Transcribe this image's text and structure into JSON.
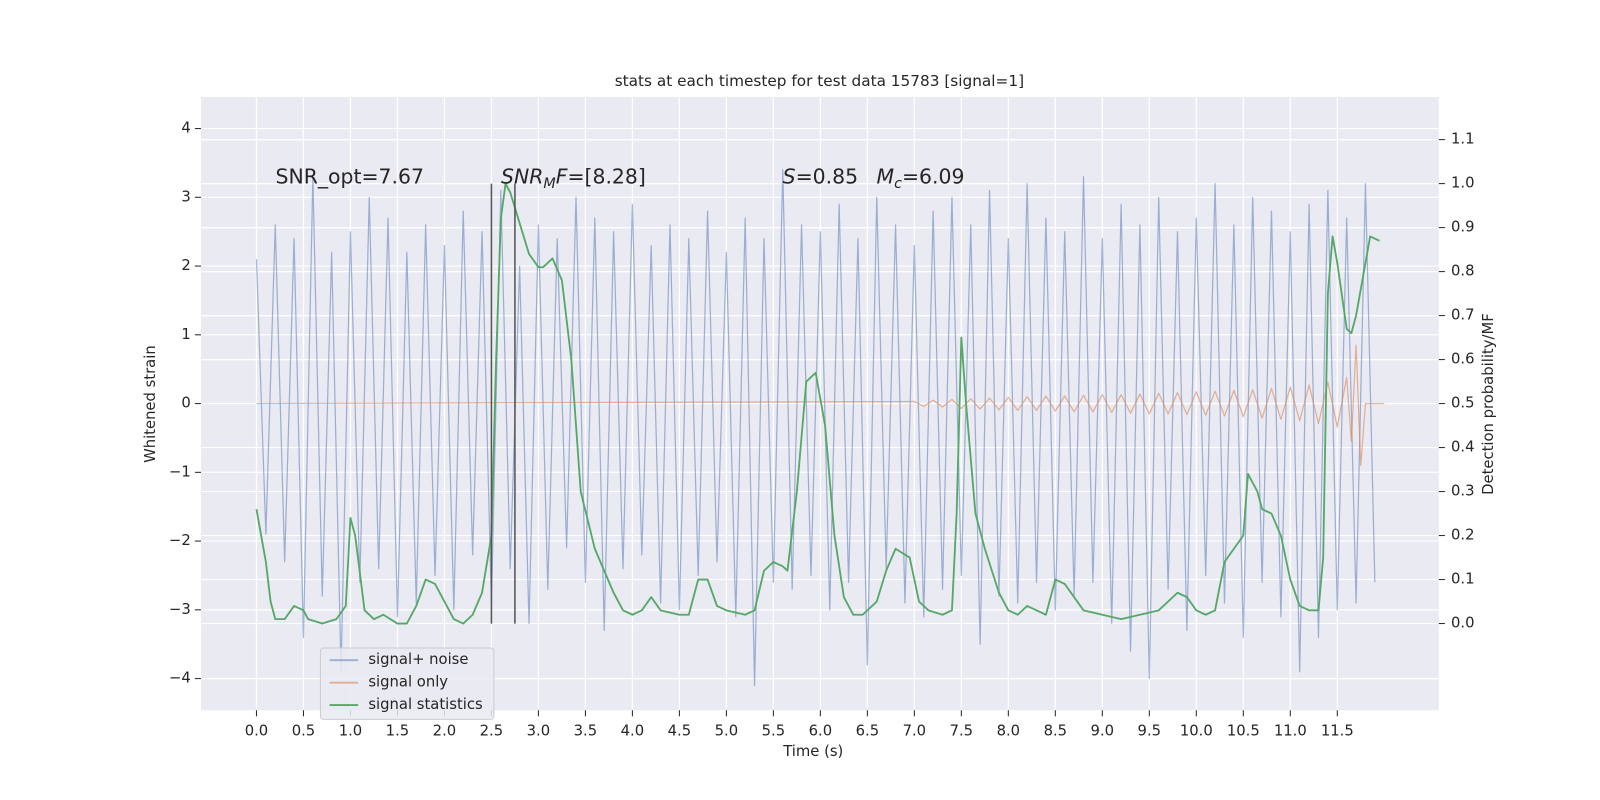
{
  "chart_data": {
    "type": "line",
    "title": "stats at each timestep for test data 15783 [signal=1]",
    "xlabel": "Time (s)",
    "ylabel": "Whitened strain",
    "y2label": "Detection probability/MF",
    "grid": true,
    "background": "#eaeaf2",
    "legend": "lower left",
    "xlim": [
      -0.59,
      12.58
    ],
    "ylim": [
      -4.46,
      4.46
    ],
    "y2lim": [
      -0.197,
      1.197
    ],
    "xticks": [
      {
        "value": 0,
        "label": "0.0"
      },
      0.5,
      {
        "value": 1,
        "label": "1.0"
      },
      1.5,
      {
        "value": 2,
        "label": "2.0"
      },
      2.5,
      {
        "value": 3,
        "label": "3.0"
      },
      3.5,
      {
        "value": 4,
        "label": "4.0"
      },
      4.5,
      {
        "value": 5,
        "label": "5.0"
      },
      5.5,
      {
        "value": 6,
        "label": "6.0"
      },
      6.5,
      {
        "value": 7,
        "label": "7.0"
      },
      7.5,
      {
        "value": 8,
        "label": "8.0"
      },
      8.5,
      {
        "value": 9,
        "label": "9.0"
      },
      9.5,
      {
        "value": 10,
        "label": "10.0"
      },
      10.5,
      {
        "value": 11,
        "label": "11.0"
      },
      11.5
    ],
    "yticks": [
      {
        "value": -4,
        "label": "−4"
      },
      {
        "value": -3,
        "label": "−3"
      },
      {
        "value": -2,
        "label": "−2"
      },
      {
        "value": -1,
        "label": "−1"
      },
      0,
      1,
      2,
      3,
      4
    ],
    "y2ticks": [
      {
        "value": 0,
        "label": "0.0"
      },
      0.1,
      0.2,
      0.3,
      0.4,
      0.5,
      0.6,
      0.7,
      0.8,
      0.9,
      {
        "value": 1,
        "label": "1.0"
      },
      1.1
    ],
    "series": [
      {
        "name": "signal+ noise",
        "color": "#4c72b0",
        "opacity": 0.5,
        "x": [
          0,
          0.1,
          0.2,
          0.3,
          0.4,
          0.5,
          0.6,
          0.7,
          0.8,
          0.9,
          1,
          1.1,
          1.2,
          1.3,
          1.4,
          1.5,
          1.6,
          1.7,
          1.8,
          1.9,
          2,
          2.1,
          2.2,
          2.3,
          2.4,
          2.5,
          2.6,
          2.7,
          2.8,
          2.9,
          3,
          3.1,
          3.2,
          3.3,
          3.4,
          3.5,
          3.6,
          3.7,
          3.8,
          3.9,
          4,
          4.1,
          4.2,
          4.3,
          4.4,
          4.5,
          4.6,
          4.7,
          4.8,
          4.9,
          5,
          5.1,
          5.2,
          5.3,
          5.4,
          5.5,
          5.6,
          5.7,
          5.8,
          5.9,
          6,
          6.1,
          6.2,
          6.3,
          6.4,
          6.5,
          6.6,
          6.7,
          6.8,
          6.9,
          7,
          7.1,
          7.2,
          7.3,
          7.4,
          7.5,
          7.6,
          7.7,
          7.8,
          7.9,
          8,
          8.1,
          8.2,
          8.3,
          8.4,
          8.5,
          8.6,
          8.7,
          8.8,
          8.9,
          9,
          9.1,
          9.2,
          9.3,
          9.4,
          9.5,
          9.6,
          9.7,
          9.8,
          9.9,
          10,
          10.1,
          10.2,
          10.3,
          10.4,
          10.5,
          10.6,
          10.7,
          10.8,
          10.9,
          11,
          11.1,
          11.2,
          11.3,
          11.4,
          11.5,
          11.6,
          11.7,
          11.8,
          11.9
        ],
        "values": [
          2.1,
          -1.9,
          2.6,
          -2.3,
          2.4,
          -3.4,
          3.3,
          -2.8,
          2.2,
          -3.9,
          2.5,
          -2.6,
          3.0,
          -2.4,
          2.7,
          -3.1,
          2.2,
          -2.9,
          2.6,
          -2.5,
          2.3,
          -3.0,
          2.8,
          -2.2,
          2.5,
          -2.9,
          3.1,
          -2.4,
          2.0,
          -3.2,
          2.6,
          -2.7,
          2.4,
          -2.1,
          3.0,
          -2.6,
          2.7,
          -3.3,
          2.5,
          -2.4,
          2.9,
          -2.2,
          2.3,
          -2.9,
          2.6,
          -3.0,
          2.4,
          -2.5,
          2.8,
          -2.3,
          2.2,
          -3.1,
          2.7,
          -4.1,
          2.4,
          -2.6,
          3.4,
          -2.7,
          2.6,
          -2.5,
          2.5,
          -3.0,
          2.9,
          -2.6,
          2.4,
          -3.8,
          3.0,
          -2.4,
          2.6,
          -2.9,
          2.3,
          -3.1,
          2.8,
          -2.7,
          3.0,
          -2.5,
          2.6,
          -3.5,
          3.1,
          -2.8,
          2.4,
          -2.9,
          3.2,
          -2.6,
          2.7,
          -3.0,
          2.5,
          -2.8,
          3.3,
          -2.6,
          2.4,
          -3.2,
          2.9,
          -3.6,
          2.6,
          -4.0,
          3.0,
          -2.7,
          2.5,
          -3.3,
          2.7,
          -2.5,
          3.2,
          -2.9,
          2.6,
          -3.4,
          3.0,
          -2.6,
          2.8,
          -3.1,
          2.5,
          -3.9,
          2.9,
          -3.4,
          3.1,
          -3.0,
          2.7,
          -2.9,
          3.2,
          -2.6
        ]
      },
      {
        "name": "signal only",
        "color": "#dd8452",
        "opacity": 0.6,
        "x": [
          0,
          7,
          7.1,
          7.2,
          7.3,
          7.4,
          7.5,
          7.6,
          7.7,
          7.8,
          7.9,
          8,
          8.1,
          8.2,
          8.3,
          8.4,
          8.5,
          8.6,
          8.7,
          8.8,
          8.9,
          9,
          9.1,
          9.2,
          9.3,
          9.4,
          9.5,
          9.6,
          9.7,
          9.8,
          9.9,
          10,
          10.1,
          10.2,
          10.3,
          10.4,
          10.5,
          10.6,
          10.7,
          10.8,
          10.9,
          11,
          11.1,
          11.2,
          11.3,
          11.4,
          11.5,
          11.6,
          11.65,
          11.7,
          11.75,
          11.8,
          12
        ],
        "values": [
          0,
          0.03,
          -0.04,
          0.05,
          -0.05,
          0.06,
          -0.07,
          0.07,
          -0.08,
          0.08,
          -0.09,
          0.09,
          -0.1,
          0.1,
          -0.1,
          0.11,
          -0.11,
          0.11,
          -0.12,
          0.12,
          -0.12,
          0.13,
          -0.13,
          0.13,
          -0.14,
          0.14,
          -0.15,
          0.15,
          -0.15,
          0.16,
          -0.16,
          0.17,
          -0.17,
          0.18,
          -0.18,
          0.19,
          -0.19,
          0.2,
          -0.21,
          0.22,
          -0.23,
          0.24,
          -0.25,
          0.27,
          -0.29,
          0.31,
          -0.34,
          0.38,
          -0.55,
          0.85,
          -0.9,
          0,
          0
        ]
      },
      {
        "name": "signal statistics",
        "color": "#55a868",
        "opacity": 1,
        "axis": "y2",
        "x": [
          0,
          0.1,
          0.15,
          0.2,
          0.3,
          0.4,
          0.5,
          0.55,
          0.7,
          0.85,
          0.95,
          1,
          1.05,
          1.15,
          1.25,
          1.35,
          1.5,
          1.6,
          1.7,
          1.8,
          1.9,
          2,
          2.1,
          2.2,
          2.3,
          2.4,
          2.5,
          2.55,
          2.6,
          2.65,
          2.7,
          2.8,
          2.9,
          3,
          3.05,
          3.15,
          3.25,
          3.35,
          3.45,
          3.6,
          3.7,
          3.8,
          3.9,
          4,
          4.1,
          4.2,
          4.3,
          4.5,
          4.6,
          4.7,
          4.8,
          4.9,
          5,
          5.2,
          5.3,
          5.4,
          5.5,
          5.6,
          5.65,
          5.75,
          5.85,
          5.95,
          6.05,
          6.15,
          6.25,
          6.35,
          6.45,
          6.6,
          6.7,
          6.8,
          6.95,
          7.05,
          7.15,
          7.3,
          7.4,
          7.45,
          7.5,
          7.55,
          7.65,
          7.75,
          7.9,
          8,
          8.1,
          8.2,
          8.3,
          8.4,
          8.5,
          8.6,
          8.7,
          8.8,
          9,
          9.2,
          9.4,
          9.6,
          9.8,
          9.9,
          10,
          10.1,
          10.2,
          10.3,
          10.4,
          10.5,
          10.55,
          10.65,
          10.7,
          10.8,
          10.9,
          11,
          11.1,
          11.2,
          11.3,
          11.35,
          11.4,
          11.45,
          11.5,
          11.6,
          11.65,
          11.7,
          11.8,
          11.85,
          11.95
        ],
        "values": [
          0.26,
          0.14,
          0.05,
          0.01,
          0.01,
          0.04,
          0.03,
          0.01,
          0.0,
          0.01,
          0.04,
          0.24,
          0.2,
          0.03,
          0.01,
          0.02,
          0.0,
          0.0,
          0.04,
          0.1,
          0.09,
          0.05,
          0.01,
          0.0,
          0.02,
          0.07,
          0.2,
          0.6,
          0.92,
          1.0,
          0.98,
          0.91,
          0.84,
          0.81,
          0.81,
          0.83,
          0.78,
          0.6,
          0.3,
          0.17,
          0.12,
          0.07,
          0.03,
          0.02,
          0.03,
          0.06,
          0.03,
          0.02,
          0.02,
          0.1,
          0.1,
          0.04,
          0.03,
          0.02,
          0.03,
          0.12,
          0.14,
          0.13,
          0.12,
          0.3,
          0.55,
          0.57,
          0.45,
          0.2,
          0.06,
          0.02,
          0.02,
          0.05,
          0.12,
          0.17,
          0.15,
          0.05,
          0.03,
          0.02,
          0.03,
          0.25,
          0.65,
          0.5,
          0.25,
          0.17,
          0.07,
          0.03,
          0.02,
          0.04,
          0.03,
          0.02,
          0.1,
          0.09,
          0.06,
          0.03,
          0.02,
          0.01,
          0.02,
          0.03,
          0.07,
          0.06,
          0.03,
          0.02,
          0.03,
          0.14,
          0.17,
          0.2,
          0.34,
          0.3,
          0.26,
          0.25,
          0.2,
          0.1,
          0.04,
          0.03,
          0.03,
          0.15,
          0.75,
          0.88,
          0.82,
          0.67,
          0.66,
          0.7,
          0.82,
          0.88,
          0.87
        ]
      }
    ],
    "vlines": {
      "x": [
        2.5,
        2.75
      ],
      "ymin": -3.2,
      "ymax": 3.2,
      "color": "#555555"
    },
    "annotations": [
      {
        "parts": [
          {
            "text": "SNR_opt=7.67",
            "style": "normal"
          }
        ]
      },
      {
        "parts": [
          {
            "text": "SNR",
            "style": "italic"
          },
          {
            "text": "M",
            "style": "sub"
          },
          {
            "text": "F",
            "style": "italic"
          },
          {
            "text": "=[8.28]",
            "style": "normal"
          }
        ]
      },
      {
        "parts": [
          {
            "text": "S",
            "style": "italic"
          },
          {
            "text": "=0.85",
            "style": "normal"
          }
        ]
      },
      {
        "parts": [
          {
            "text": "M",
            "style": "italic"
          },
          {
            "text": "c",
            "style": "sub"
          },
          {
            "text": "=6.09",
            "style": "normal"
          }
        ]
      }
    ]
  }
}
